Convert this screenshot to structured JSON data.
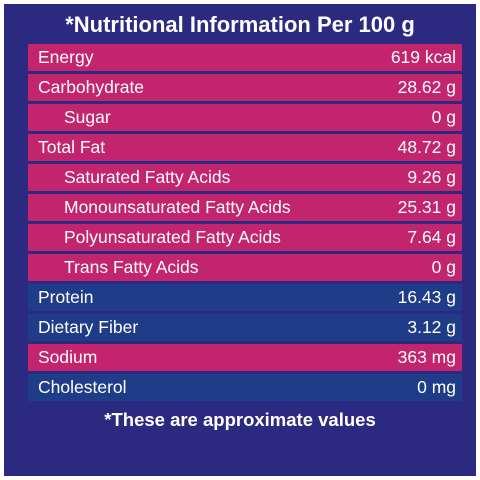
{
  "title": "*Nutritional Information Per 100 g",
  "colors": {
    "background": "#2b2a80",
    "row_pink": "#c3246e",
    "row_blue": "#1f3c88",
    "text": "#ffffff"
  },
  "rows": [
    {
      "label": "Energy",
      "value": "619 kcal"
    },
    {
      "label": "Carbohydrate",
      "value": "28.62 g"
    },
    {
      "label": "Sugar",
      "value": "0 g"
    },
    {
      "label": "Total Fat",
      "value": "48.72 g"
    },
    {
      "label": "Saturated Fatty Acids",
      "value": "9.26 g"
    },
    {
      "label": "Monounsaturated Fatty Acids",
      "value": "25.31 g"
    },
    {
      "label": "Polyunsaturated Fatty Acids",
      "value": "7.64 g"
    },
    {
      "label": "Trans Fatty Acids",
      "value": "0 g"
    },
    {
      "label": "Protein",
      "value": "16.43 g"
    },
    {
      "label": "Dietary Fiber",
      "value": "3.12 g"
    },
    {
      "label": "Sodium",
      "value": "363 mg"
    },
    {
      "label": "Cholesterol",
      "value": "0 mg"
    }
  ],
  "footnote": "*These are approximate values"
}
